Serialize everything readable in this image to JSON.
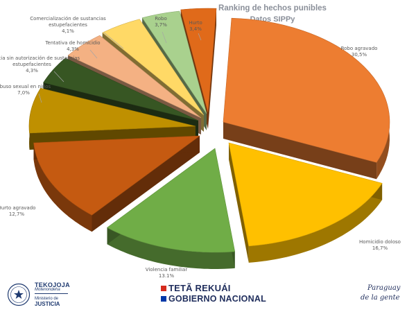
{
  "chart_data": {
    "type": "pie",
    "title": "Ranking de hechos punibles",
    "subtitle": "Datos SIPPy",
    "slices": [
      {
        "name": "Robo agravado",
        "value": 30.5,
        "label": "30,5%",
        "color": "#ed7d31"
      },
      {
        "name": "Homicidio doloso",
        "value": 16.7,
        "label": "16,7%",
        "color": "#ffc000"
      },
      {
        "name": "Violencia familiar",
        "value": 13.1,
        "label": "13,1%",
        "color": "#70ad47"
      },
      {
        "name": "Hurto agravado",
        "value": 12.7,
        "label": "12,7%",
        "color": "#c55a11"
      },
      {
        "name": "Abuso sexual en niños",
        "value": 7.0,
        "label": "7,0%",
        "color": "#bf9000"
      },
      {
        "name": "Tenencia sin autorización de sustancias estupefacientes",
        "value": 4.3,
        "label": "4,3%",
        "color": "#375623"
      },
      {
        "name": "Tentativa de homicidio",
        "value": 4.3,
        "label": "4,3%",
        "color": "#f4b183"
      },
      {
        "name": "Comercialización de sustancias estupefacientes",
        "value": 4.1,
        "label": "4,1%",
        "color": "#ffd966"
      },
      {
        "name": "Robo",
        "value": 3.7,
        "label": "3,7%",
        "color": "#a9d18e"
      },
      {
        "name": "Hurto",
        "value": 3.4,
        "label": "3,4%",
        "color": "#e06a1a"
      }
    ],
    "legend": "none",
    "style": "3d-exploded"
  },
  "footer": {
    "ministry_name": "TEKOJOJA",
    "ministry_sub": "Motenondeha",
    "ministry_line3": "Ministerio de",
    "ministry_line4": "JUSTICIA",
    "gov_line1": "TETÃ REKUÁI",
    "gov_line2": "GOBIERNO NACIONAL",
    "gov_colors": [
      "#d52b1e",
      "#0038a8"
    ],
    "slogan_line1": "Paraguay",
    "slogan_line2": "de la gente"
  }
}
